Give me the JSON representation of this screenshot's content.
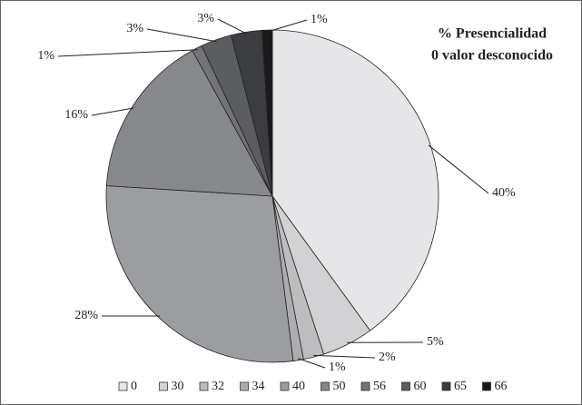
{
  "chart_data": {
    "type": "pie",
    "title": "% Presencialidad",
    "subtitle": "0 valor desconocido",
    "categories": [
      "0",
      "30",
      "32",
      "34",
      "40",
      "50",
      "56",
      "60",
      "65",
      "66"
    ],
    "values": [
      40,
      5,
      2,
      1,
      28,
      16,
      1,
      3,
      3,
      1
    ],
    "value_labels": [
      "40%",
      "5%",
      "2%",
      "1%",
      "28%",
      "16%",
      "1%",
      "3%",
      "3%",
      "1%"
    ],
    "colors": [
      "#e6e6e8",
      "#d2d2d4",
      "#bdbdbf",
      "#adadb0",
      "#9c9da0",
      "#87888b",
      "#727376",
      "#5c5d60",
      "#3c3d40",
      "#1a1a1a"
    ],
    "legend": "bottom"
  }
}
